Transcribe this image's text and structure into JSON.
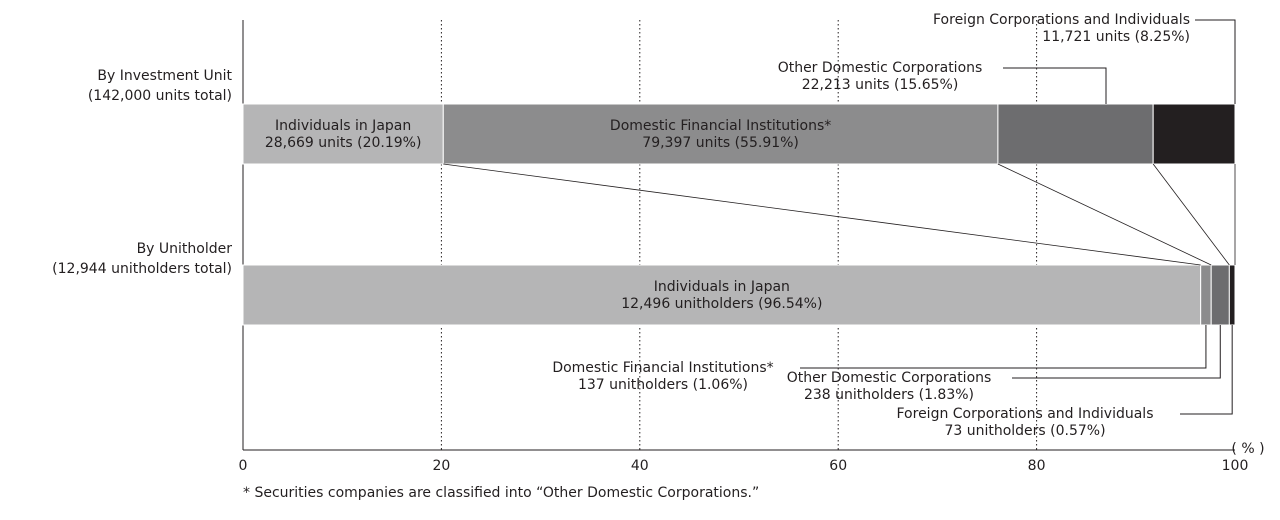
{
  "chart_data": {
    "type": "stacked_barh",
    "categories": [
      "By Investment Unit",
      "By Unitholder"
    ],
    "category_totals": [
      "(142,000 units total)",
      "(12,944 unitholders total)"
    ],
    "series": [
      {
        "name": "Individuals in Japan",
        "color": "#b5b5b6",
        "values": [
          20.19,
          96.54
        ],
        "value_labels": [
          "28,669 units (20.19%)",
          "12,496 unitholders (96.54%)"
        ]
      },
      {
        "name": "Domestic Financial Institutions*",
        "color": "#8c8c8d",
        "values": [
          55.91,
          1.06
        ],
        "value_labels": [
          "79,397 units (55.91%)",
          "137 unitholders (1.06%)"
        ]
      },
      {
        "name": "Other Domestic Corporations",
        "color": "#6d6d6f",
        "values": [
          15.65,
          1.83
        ],
        "value_labels": [
          "22,213 units (15.65%)",
          "238 unitholders (1.83%)"
        ]
      },
      {
        "name": "Foreign Corporations and Individuals",
        "color": "#231f20",
        "values": [
          8.25,
          0.57
        ],
        "value_labels": [
          "11,721 units (8.25%)",
          "73 unitholders (0.57%)"
        ]
      }
    ],
    "xlim": [
      0,
      100
    ],
    "xticks": [
      0,
      20,
      40,
      60,
      80,
      100
    ],
    "xlabel": "( % )",
    "grid": true,
    "footnote": "* Securities companies are classified into “Other Domestic Corporations.”"
  }
}
